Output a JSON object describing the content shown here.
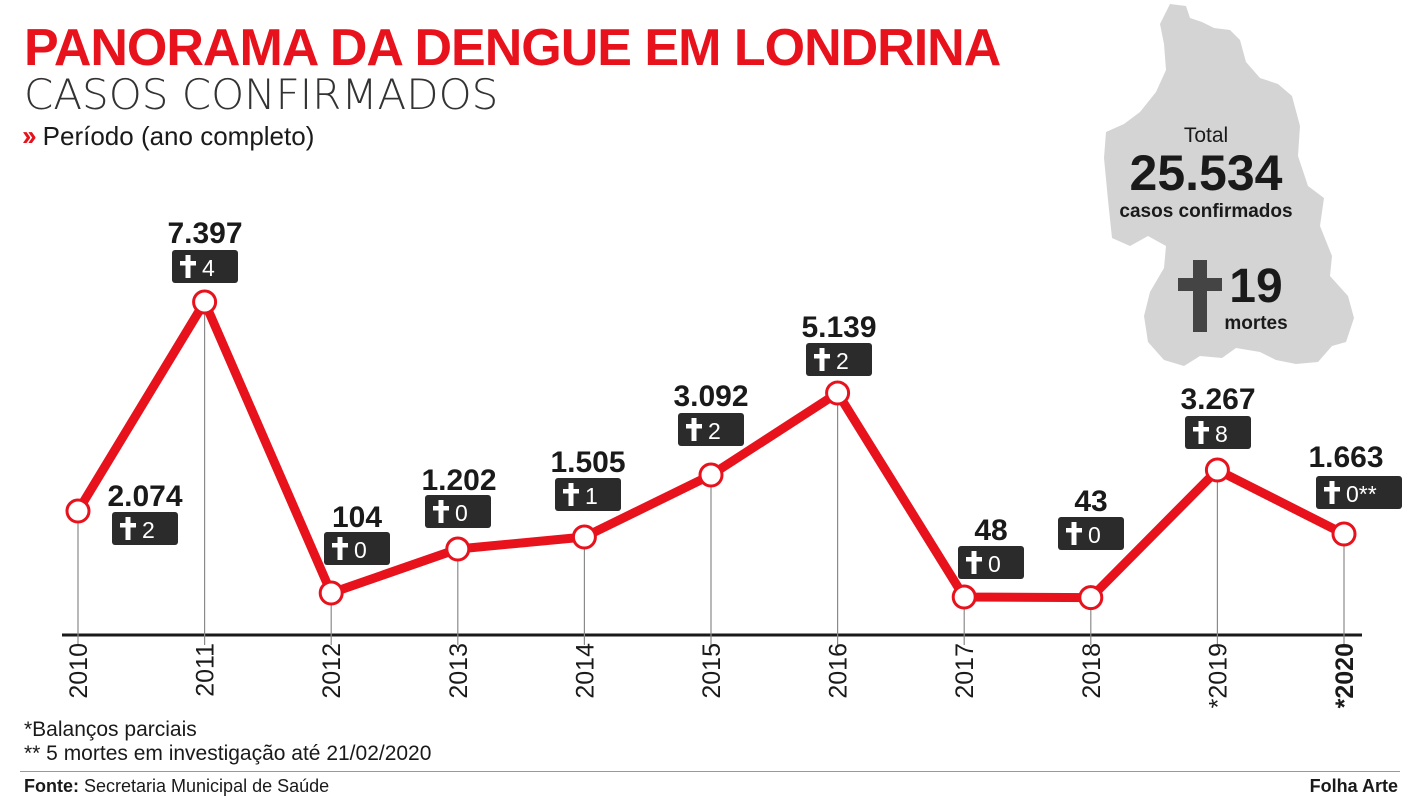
{
  "header": {
    "title": "PANORAMA DA DENGUE EM LONDRINA",
    "subtitle": "CASOS CONFIRMADOS",
    "period_label": "Período (ano completo)"
  },
  "summary": {
    "total_label": "Total",
    "total_value": "25.534",
    "total_caption": "casos confirmados",
    "deaths_value": "19",
    "deaths_caption": "mortes"
  },
  "notes": {
    "partial": "*Balanços parciais",
    "investigation": "** 5 mortes em investigação até 21/02/2020"
  },
  "footer": {
    "source_label": "Fonte:",
    "source_text": "Secretaria Municipal de Saúde",
    "credit": "Folha Arte"
  },
  "colors": {
    "accent": "#e8121d",
    "badge": "#2b2b2b",
    "map": "#d4d4d4",
    "text": "#1a1a1a"
  },
  "icons": {
    "deaths": "cross-icon",
    "period": "double-chevron-right-icon"
  },
  "chart_data": {
    "type": "line",
    "title": "PANORAMA DA DENGUE EM LONDRINA",
    "subtitle": "CASOS CONFIRMADOS",
    "categories": [
      "2010",
      "2011",
      "2012",
      "2013",
      "2014",
      "2015",
      "2016",
      "2017",
      "2018",
      "*2019",
      "*2020"
    ],
    "series": [
      {
        "values": [
          2074,
          7397,
          104,
          1202,
          1505,
          3092,
          5139,
          48,
          43,
          3267,
          1663
        ],
        "value_labels": [
          "2.074",
          "7.397",
          "104",
          "1.202",
          "1.505",
          "3.092",
          "5.139",
          "48",
          "43",
          "3.267",
          "1.663"
        ]
      }
    ],
    "deaths": [
      "2",
      "4",
      "0",
      "0",
      "1",
      "2",
      "2",
      "0",
      "0",
      "8",
      "0**"
    ],
    "xlabel": "",
    "ylabel": "",
    "grid": false,
    "legend": "none"
  }
}
